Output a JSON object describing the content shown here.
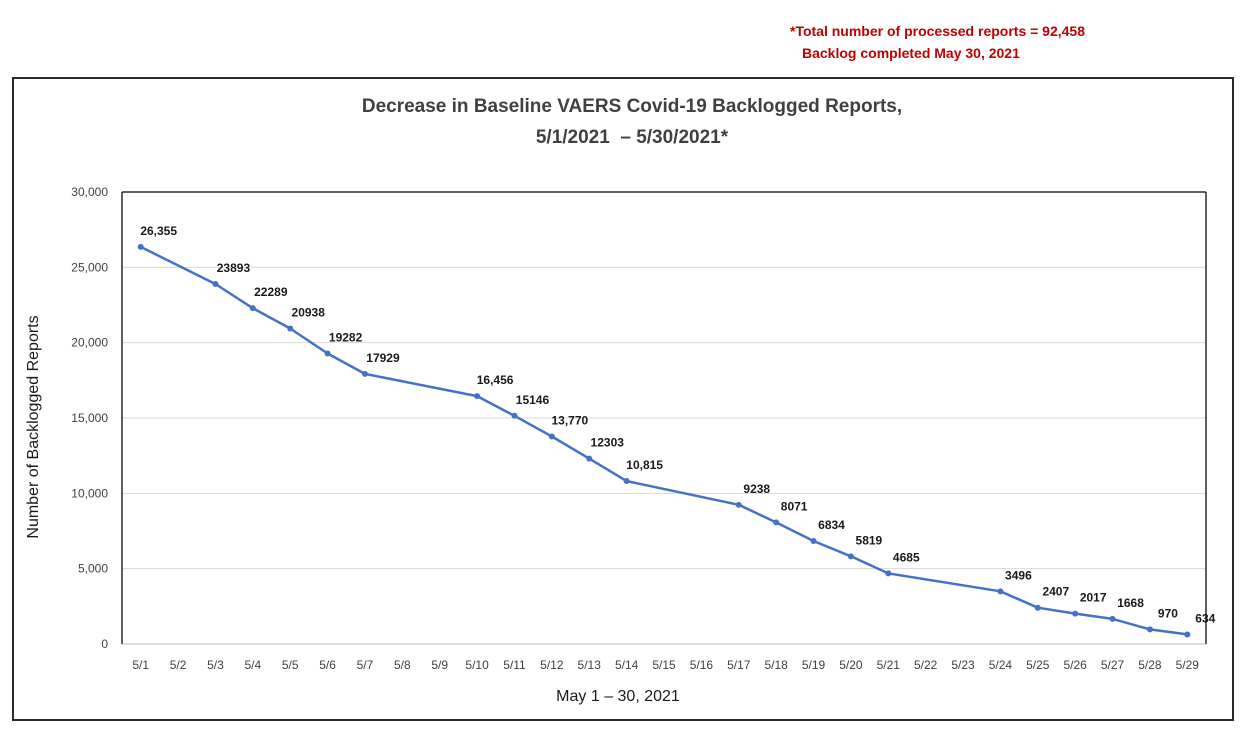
{
  "note": {
    "line1": "*Total number of processed reports = 92,458",
    "line2": "Backlog completed May 30, 2021"
  },
  "chart_data": {
    "type": "line",
    "title_line1": "Decrease in Baseline VAERS Covid-19 Backlogged Reports,",
    "title_line2": "5/1/2021  – 5/30/2021*",
    "xlabel": "May 1 – 30, 2021",
    "ylabel": "Number of Backlogged Reports",
    "ylim": [
      0,
      30000
    ],
    "yticks": [
      0,
      5000,
      10000,
      15000,
      20000,
      25000,
      30000
    ],
    "ytick_labels": [
      "0",
      "5,000",
      "10,000",
      "15,000",
      "20,000",
      "25,000",
      "30,000"
    ],
    "grid": "horizontal",
    "line_color": "#4472c4",
    "categories": [
      "5/1",
      "5/2",
      "5/3",
      "5/4",
      "5/5",
      "5/6",
      "5/7",
      "5/8",
      "5/9",
      "5/10",
      "5/11",
      "5/12",
      "5/13",
      "5/14",
      "5/15",
      "5/16",
      "5/17",
      "5/18",
      "5/19",
      "5/20",
      "5/21",
      "5/22",
      "5/23",
      "5/24",
      "5/25",
      "5/26",
      "5/27",
      "5/28",
      "5/29"
    ],
    "series": [
      {
        "points": [
          {
            "x": "5/1",
            "y": 26355,
            "label": "26,355"
          },
          {
            "x": "5/3",
            "y": 23893,
            "label": "23893"
          },
          {
            "x": "5/4",
            "y": 22289,
            "label": "22289"
          },
          {
            "x": "5/5",
            "y": 20938,
            "label": "20938"
          },
          {
            "x": "5/6",
            "y": 19282,
            "label": "19282"
          },
          {
            "x": "5/7",
            "y": 17929,
            "label": "17929"
          },
          {
            "x": "5/10",
            "y": 16456,
            "label": "16,456"
          },
          {
            "x": "5/11",
            "y": 15146,
            "label": "15146"
          },
          {
            "x": "5/12",
            "y": 13770,
            "label": "13,770"
          },
          {
            "x": "5/13",
            "y": 12303,
            "label": "12303"
          },
          {
            "x": "5/14",
            "y": 10815,
            "label": "10,815"
          },
          {
            "x": "5/17",
            "y": 9238,
            "label": "9238"
          },
          {
            "x": "5/18",
            "y": 8071,
            "label": "8071"
          },
          {
            "x": "5/19",
            "y": 6834,
            "label": "6834"
          },
          {
            "x": "5/20",
            "y": 5819,
            "label": "5819"
          },
          {
            "x": "5/21",
            "y": 4685,
            "label": "4685"
          },
          {
            "x": "5/24",
            "y": 3496,
            "label": "3496"
          },
          {
            "x": "5/25",
            "y": 2407,
            "label": "2407"
          },
          {
            "x": "5/26",
            "y": 2017,
            "label": "2017"
          },
          {
            "x": "5/27",
            "y": 1668,
            "label": "1668"
          },
          {
            "x": "5/28",
            "y": 970,
            "label": "970"
          },
          {
            "x": "5/29",
            "y": 634,
            "label": "634"
          }
        ]
      }
    ]
  }
}
